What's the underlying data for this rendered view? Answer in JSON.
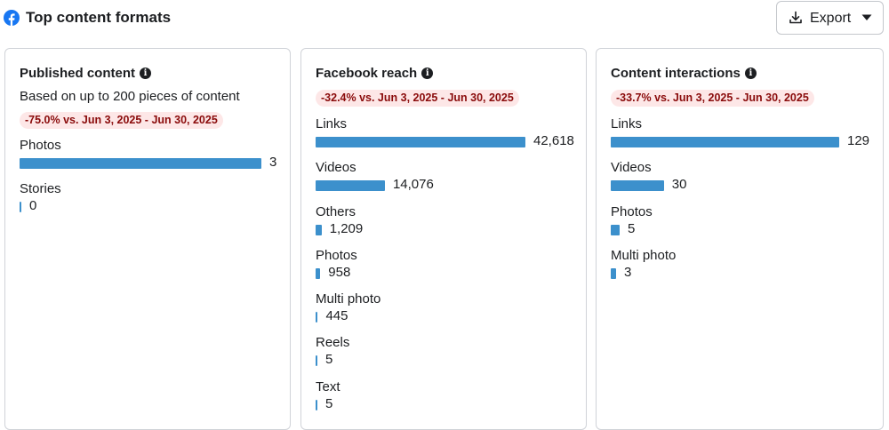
{
  "header": {
    "title": "Top content formats",
    "export_label": "Export",
    "icon": "facebook-icon"
  },
  "colors": {
    "bar": "#3c90cc",
    "badge_bg": "#fde7e7",
    "badge_text": "#8a0b0b",
    "brand": "#1877f2"
  },
  "cards": [
    {
      "title": "Published content",
      "subtitle": "Based on up to 200 pieces of content",
      "change": "-75.0% vs. Jun 3, 2025 - Jun 30, 2025",
      "max": 3,
      "rows": [
        {
          "label": "Photos",
          "value": 3,
          "display": "3"
        },
        {
          "label": "Stories",
          "value": 0,
          "display": "0"
        }
      ]
    },
    {
      "title": "Facebook reach",
      "subtitle": "",
      "change": "-32.4% vs. Jun 3, 2025 - Jun 30, 2025",
      "max": 42618,
      "rows": [
        {
          "label": "Links",
          "value": 42618,
          "display": "42,618"
        },
        {
          "label": "Videos",
          "value": 14076,
          "display": "14,076"
        },
        {
          "label": "Others",
          "value": 1209,
          "display": "1,209"
        },
        {
          "label": "Photos",
          "value": 958,
          "display": "958"
        },
        {
          "label": "Multi photo",
          "value": 445,
          "display": "445"
        },
        {
          "label": "Reels",
          "value": 5,
          "display": "5"
        },
        {
          "label": "Text",
          "value": 5,
          "display": "5"
        }
      ]
    },
    {
      "title": "Content interactions",
      "subtitle": "",
      "change": "-33.7% vs. Jun 3, 2025 - Jun 30, 2025",
      "max": 129,
      "rows": [
        {
          "label": "Links",
          "value": 129,
          "display": "129"
        },
        {
          "label": "Videos",
          "value": 30,
          "display": "30"
        },
        {
          "label": "Photos",
          "value": 5,
          "display": "5"
        },
        {
          "label": "Multi photo",
          "value": 3,
          "display": "3"
        }
      ]
    }
  ]
}
